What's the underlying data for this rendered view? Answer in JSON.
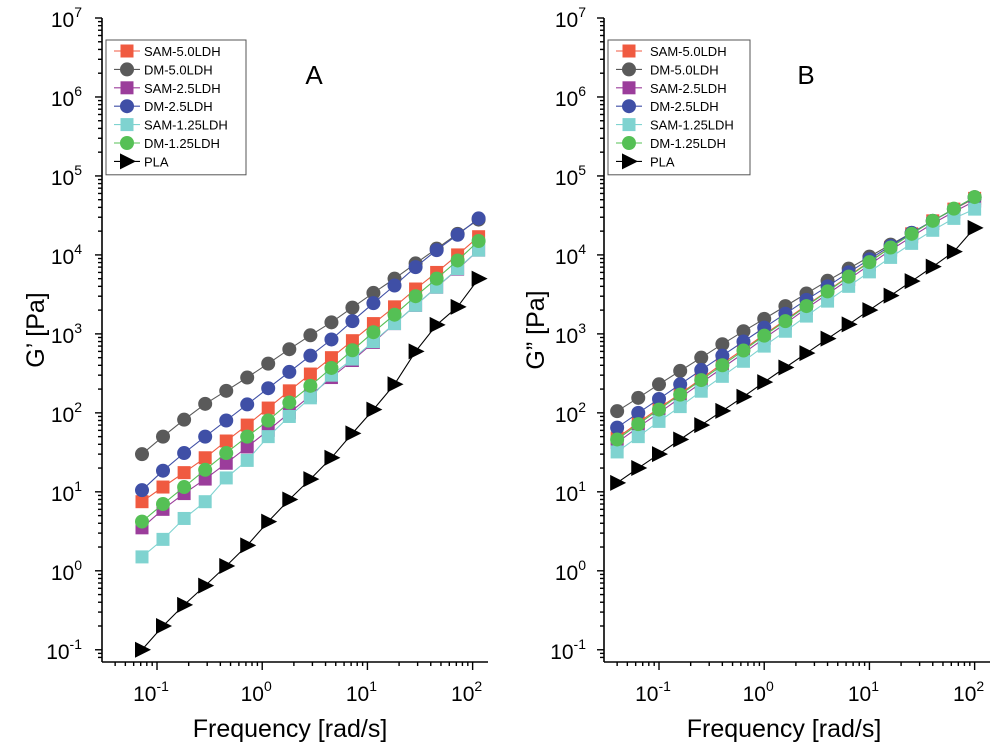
{
  "chart_data": [
    {
      "type": "scatter",
      "panel_label": "A",
      "xlabel": "Frequency [rad/s]",
      "ylabel": "G’ [Pa]",
      "xscale": "log",
      "yscale": "log",
      "xlim": [
        0.03,
        140
      ],
      "ylim": [
        0.07,
        10000000
      ],
      "x_ticks": [
        {
          "value": 0.1,
          "base": "10",
          "exp": "-1"
        },
        {
          "value": 1,
          "base": "10",
          "exp": "0"
        },
        {
          "value": 10,
          "base": "10",
          "exp": "1"
        },
        {
          "value": 100,
          "base": "10",
          "exp": "2"
        }
      ],
      "y_ticks": [
        {
          "value": 0.1,
          "base": "10",
          "exp": "-1"
        },
        {
          "value": 1,
          "base": "10",
          "exp": "0"
        },
        {
          "value": 10,
          "base": "10",
          "exp": "1"
        },
        {
          "value": 100,
          "base": "10",
          "exp": "2"
        },
        {
          "value": 1000,
          "base": "10",
          "exp": "3"
        },
        {
          "value": 10000,
          "base": "10",
          "exp": "4"
        },
        {
          "value": 100000,
          "base": "10",
          "exp": "5"
        },
        {
          "value": 1000000,
          "base": "10",
          "exp": "6"
        },
        {
          "value": 10000000,
          "base": "10",
          "exp": "7"
        }
      ],
      "grid": false,
      "legend_position": "top-left",
      "x": [
        0.072,
        0.114,
        0.181,
        0.287,
        0.455,
        0.72,
        1.14,
        1.81,
        2.87,
        4.55,
        7.2,
        11.4,
        18.1,
        28.7,
        45.5,
        72,
        114
      ],
      "series": [
        {
          "name": "SAM-5.0LDH",
          "color": "#f05a40",
          "marker": "square",
          "values": [
            7.5,
            11.5,
            17.5,
            27,
            44,
            70,
            115,
            190,
            310,
            500,
            820,
            1350,
            2200,
            3700,
            6000,
            10000,
            17000
          ]
        },
        {
          "name": "DM-5.0LDH",
          "color": "#5a5a5a",
          "marker": "circle",
          "values": [
            30,
            50,
            82,
            130,
            190,
            280,
            420,
            640,
            960,
            1400,
            2150,
            3300,
            5000,
            7800,
            12000,
            18500,
            28000
          ]
        },
        {
          "name": "SAM-2.5LDH",
          "color": "#9b3d9b",
          "marker": "square",
          "values": [
            3.5,
            6,
            9.5,
            14.5,
            23,
            37,
            60,
            100,
            165,
            280,
            460,
            780,
            1350,
            2300,
            3900,
            6600,
            11500
          ]
        },
        {
          "name": "DM-2.5LDH",
          "color": "#3f4fa6",
          "marker": "circle",
          "values": [
            10.5,
            18.5,
            31,
            50,
            80,
            128,
            205,
            330,
            530,
            850,
            1450,
            2450,
            4100,
            7000,
            11500,
            18000,
            29000
          ]
        },
        {
          "name": "SAM-1.25LDH",
          "color": "#7fd3d0",
          "marker": "square",
          "values": [
            1.5,
            2.5,
            4.6,
            7.5,
            15,
            25,
            50,
            90,
            155,
            300,
            480,
            800,
            1350,
            2300,
            3900,
            6700,
            11500
          ]
        },
        {
          "name": "DM-1.25LDH",
          "color": "#55c055",
          "marker": "circle",
          "values": [
            4.2,
            7,
            11.5,
            19,
            31,
            50,
            80,
            135,
            220,
            370,
            620,
            1050,
            1750,
            3000,
            5000,
            8500,
            15000
          ]
        },
        {
          "name": "PLA",
          "color": "#000000",
          "marker": "triangle-right",
          "values": [
            0.1,
            0.2,
            0.37,
            0.65,
            1.15,
            2.1,
            4.2,
            8,
            14.5,
            27,
            55,
            110,
            230,
            600,
            1300,
            2200,
            5000
          ]
        }
      ]
    },
    {
      "type": "scatter",
      "panel_label": "B",
      "xlabel": "Frequency [rad/s]",
      "ylabel": "G” [Pa]",
      "xscale": "log",
      "yscale": "log",
      "xlim": [
        0.03,
        140
      ],
      "ylim": [
        0.07,
        10000000
      ],
      "x_ticks": [
        {
          "value": 0.1,
          "base": "10",
          "exp": "-1"
        },
        {
          "value": 1,
          "base": "10",
          "exp": "0"
        },
        {
          "value": 10,
          "base": "10",
          "exp": "1"
        },
        {
          "value": 100,
          "base": "10",
          "exp": "2"
        }
      ],
      "y_ticks": [
        {
          "value": 0.1,
          "base": "10",
          "exp": "-1"
        },
        {
          "value": 1,
          "base": "10",
          "exp": "0"
        },
        {
          "value": 10,
          "base": "10",
          "exp": "1"
        },
        {
          "value": 100,
          "base": "10",
          "exp": "2"
        },
        {
          "value": 1000,
          "base": "10",
          "exp": "3"
        },
        {
          "value": 10000,
          "base": "10",
          "exp": "4"
        },
        {
          "value": 100000,
          "base": "10",
          "exp": "5"
        },
        {
          "value": 1000000,
          "base": "10",
          "exp": "6"
        },
        {
          "value": 10000000,
          "base": "10",
          "exp": "7"
        }
      ],
      "grid": false,
      "legend_position": "top-left",
      "x": [
        0.04,
        0.0635,
        0.1,
        0.159,
        0.252,
        0.4,
        0.635,
        1.0,
        1.59,
        2.52,
        4.0,
        6.35,
        10.0,
        15.9,
        25.2,
        40.0,
        63.5,
        100
      ],
      "series": [
        {
          "name": "SAM-5.0LDH",
          "color": "#f05a40",
          "marker": "square",
          "values": [
            48,
            75,
            115,
            175,
            270,
            420,
            640,
            980,
            1500,
            2300,
            3500,
            5400,
            8200,
            12500,
            18500,
            27000,
            38000,
            52000
          ]
        },
        {
          "name": "DM-5.0LDH",
          "color": "#5a5a5a",
          "marker": "circle",
          "values": [
            105,
            155,
            230,
            340,
            500,
            740,
            1080,
            1550,
            2250,
            3250,
            4700,
            6700,
            9500,
            13500,
            19000,
            27000,
            38000,
            54000
          ]
        },
        {
          "name": "SAM-2.5LDH",
          "color": "#9b3d9b",
          "marker": "square",
          "values": [
            42,
            66,
            100,
            155,
            240,
            370,
            570,
            880,
            1350,
            2100,
            3200,
            4900,
            7500,
            11500,
            17000,
            25000,
            35000,
            48000
          ]
        },
        {
          "name": "DM-2.5LDH",
          "color": "#3f4fa6",
          "marker": "circle",
          "values": [
            65,
            100,
            150,
            230,
            350,
            530,
            800,
            1200,
            1800,
            2700,
            4000,
            6000,
            8800,
            13000,
            19000,
            27000,
            38000,
            53000
          ]
        },
        {
          "name": "SAM-1.25LDH",
          "color": "#7fd3d0",
          "marker": "square",
          "values": [
            32,
            50,
            78,
            120,
            188,
            290,
            450,
            700,
            1080,
            1680,
            2600,
            4000,
            6100,
            9300,
            14000,
            20500,
            29000,
            38000
          ]
        },
        {
          "name": "DM-1.25LDH",
          "color": "#55c055",
          "marker": "circle",
          "values": [
            46,
            72,
            110,
            170,
            260,
            400,
            615,
            950,
            1450,
            2250,
            3450,
            5300,
            8100,
            12400,
            18500,
            27000,
            38500,
            54000
          ]
        },
        {
          "name": "PLA",
          "color": "#000000",
          "marker": "triangle-right",
          "values": [
            13,
            20,
            30,
            46,
            70,
            106,
            160,
            245,
            375,
            570,
            870,
            1320,
            2000,
            3050,
            4650,
            7100,
            11000,
            22000
          ]
        }
      ]
    }
  ]
}
